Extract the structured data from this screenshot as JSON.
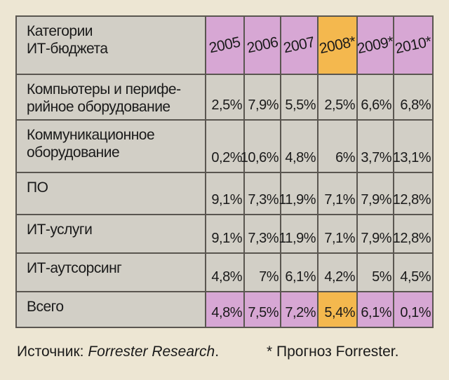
{
  "table": {
    "header": [
      "Категории\nИТ-бюджета",
      "2005",
      "2006",
      "2007",
      "2008*",
      "2009*",
      "2010*"
    ],
    "rows": [
      [
        "Компьютеры и перифе-\nрийное оборудование",
        "2,5%",
        "7,9%",
        "5,5%",
        "2,5%",
        "6,6%",
        "6,8%"
      ],
      [
        "Коммуникационное\nоборудование",
        "0,2%",
        "10,6%",
        "4,8%",
        "6%",
        "3,7%",
        "13,1%"
      ],
      [
        "ПО",
        "9,1%",
        "7,3%",
        "11,9%",
        "7,1%",
        "7,9%",
        "12,8%"
      ],
      [
        "ИТ-услуги",
        "9,1%",
        "7,3%",
        "11,9%",
        "7,1%",
        "7,9%",
        "12,8%"
      ],
      [
        "ИТ-аутсорсинг",
        "4,8%",
        "7%",
        "6,1%",
        "4,2%",
        "5%",
        "4,5%"
      ],
      [
        "Всего",
        "4,8%",
        "7,5%",
        "7,2%",
        "5,4%",
        "6,1%",
        "0,1%"
      ]
    ]
  },
  "footer": {
    "source_label": "Источник: ",
    "source_name": "Forrester Research",
    "source_end": ".",
    "note": "* Прогноз Forrester."
  }
}
